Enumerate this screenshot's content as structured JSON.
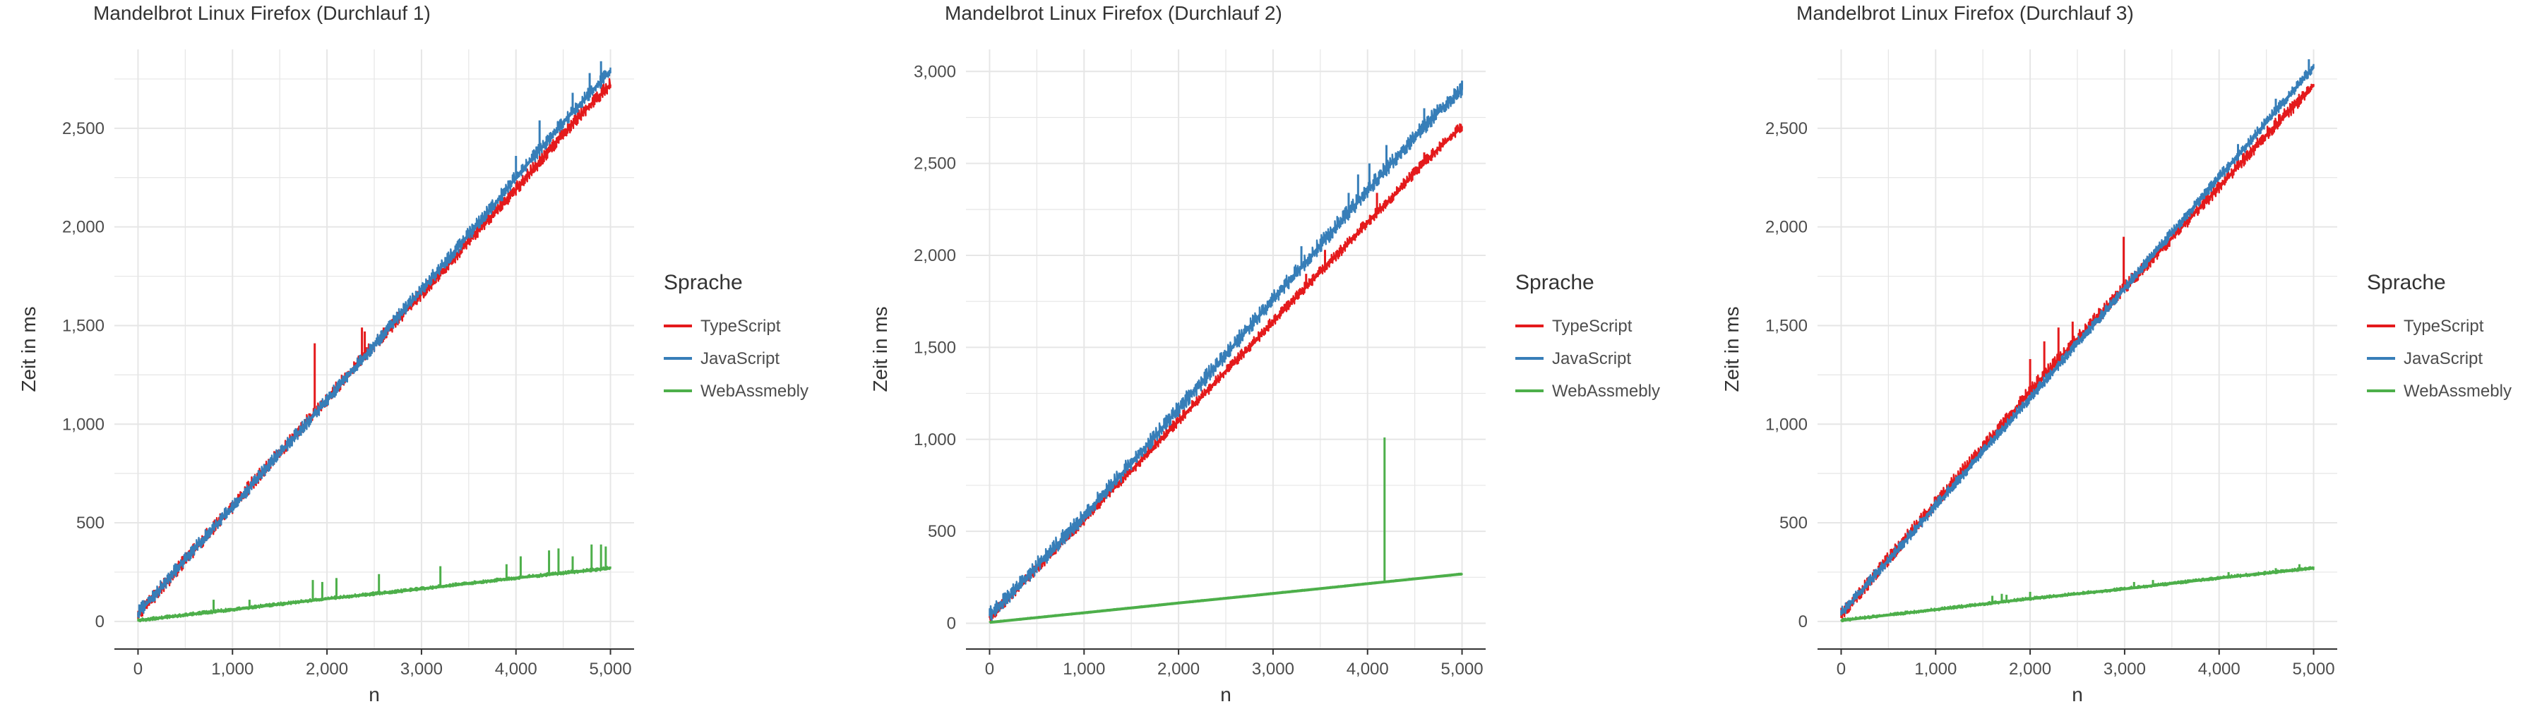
{
  "chart_data": [
    {
      "type": "line",
      "title": "Mandelbrot Linux Firefox (Durchlauf 1)",
      "xlabel": "n",
      "ylabel": "Zeit in ms",
      "xlim": [
        -250,
        5250
      ],
      "ylim": [
        -140,
        2900
      ],
      "x_ticks": [
        0,
        1000,
        2000,
        3000,
        4000,
        5000
      ],
      "x_tick_labels": [
        "0",
        "1,000",
        "2,000",
        "3,000",
        "4,000",
        "5,000"
      ],
      "y_ticks": [
        0,
        500,
        1000,
        1500,
        2000,
        2500
      ],
      "y_tick_labels": [
        "0",
        "500",
        "1,000",
        "1,500",
        "2,000",
        "2,500"
      ],
      "legend": {
        "title": "Sprache",
        "placement": "right",
        "entries": [
          "TypeScript",
          "JavaScript",
          "WebAssmebly"
        ]
      },
      "grid": true,
      "series": [
        {
          "name": "TypeScript",
          "color": "#E41A1C",
          "x": [
            0,
            250,
            500,
            750,
            1000,
            1250,
            1500,
            1750,
            2000,
            2250,
            2500,
            2750,
            3000,
            3250,
            3500,
            3750,
            4000,
            4250,
            4500,
            4750,
            5000
          ],
          "y": [
            30,
            165,
            310,
            445,
            580,
            720,
            855,
            990,
            1125,
            1265,
            1400,
            1530,
            1660,
            1790,
            1930,
            2060,
            2190,
            2330,
            2470,
            2600,
            2720
          ],
          "band": 70,
          "spikes": [
            {
              "x": 1870,
              "y": 1410
            },
            {
              "x": 2370,
              "y": 1490
            },
            {
              "x": 2400,
              "y": 1470
            },
            {
              "x": 2600,
              "y": 1490
            }
          ]
        },
        {
          "name": "JavaScript",
          "color": "#377EB8",
          "x": [
            0,
            250,
            500,
            750,
            1000,
            1250,
            1500,
            1750,
            2000,
            2250,
            2500,
            2750,
            3000,
            3250,
            3500,
            3750,
            4000,
            4250,
            4500,
            4750,
            5000
          ],
          "y": [
            40,
            175,
            315,
            450,
            580,
            715,
            850,
            985,
            1120,
            1260,
            1400,
            1540,
            1680,
            1820,
            1960,
            2100,
            2250,
            2390,
            2530,
            2660,
            2790
          ],
          "band": 70,
          "spikes": [
            {
              "x": 4000,
              "y": 2360
            },
            {
              "x": 4250,
              "y": 2540
            },
            {
              "x": 4600,
              "y": 2680
            },
            {
              "x": 4780,
              "y": 2780
            },
            {
              "x": 4900,
              "y": 2840
            }
          ]
        },
        {
          "name": "WebAssmebly",
          "color": "#4DAF4A",
          "x": [
            0,
            1000,
            2000,
            3000,
            4000,
            5000
          ],
          "y": [
            5,
            60,
            115,
            165,
            220,
            270
          ],
          "band": 18,
          "spikes": [
            {
              "x": 800,
              "y": 110
            },
            {
              "x": 1180,
              "y": 110
            },
            {
              "x": 1850,
              "y": 210
            },
            {
              "x": 1950,
              "y": 200
            },
            {
              "x": 2100,
              "y": 220
            },
            {
              "x": 2550,
              "y": 240
            },
            {
              "x": 3200,
              "y": 280
            },
            {
              "x": 3900,
              "y": 290
            },
            {
              "x": 4050,
              "y": 330
            },
            {
              "x": 4350,
              "y": 360
            },
            {
              "x": 4450,
              "y": 370
            },
            {
              "x": 4600,
              "y": 330
            },
            {
              "x": 4800,
              "y": 390
            },
            {
              "x": 4900,
              "y": 390
            },
            {
              "x": 4950,
              "y": 380
            }
          ]
        }
      ]
    },
    {
      "type": "line",
      "title": "Mandelbrot Linux Firefox (Durchlauf 2)",
      "xlabel": "n",
      "ylabel": "Zeit in ms",
      "xlim": [
        -250,
        5250
      ],
      "ylim": [
        -140,
        3120
      ],
      "x_ticks": [
        0,
        1000,
        2000,
        3000,
        4000,
        5000
      ],
      "x_tick_labels": [
        "0",
        "1,000",
        "2,000",
        "3,000",
        "4,000",
        "5,000"
      ],
      "y_ticks": [
        0,
        500,
        1000,
        1500,
        2000,
        2500,
        3000
      ],
      "y_tick_labels": [
        "0",
        "500",
        "1,000",
        "1,500",
        "2,000",
        "2,500",
        "3,000"
      ],
      "legend": {
        "title": "Sprache",
        "placement": "right",
        "entries": [
          "TypeScript",
          "JavaScript",
          "WebAssmebly"
        ]
      },
      "grid": true,
      "series": [
        {
          "name": "TypeScript",
          "color": "#E41A1C",
          "x": [
            0,
            250,
            500,
            750,
            1000,
            1250,
            1500,
            1750,
            2000,
            2250,
            2500,
            2750,
            3000,
            3250,
            3500,
            3750,
            4000,
            4250,
            4500,
            4750,
            5000
          ],
          "y": [
            30,
            160,
            295,
            430,
            560,
            700,
            830,
            965,
            1100,
            1235,
            1370,
            1500,
            1640,
            1775,
            1910,
            2040,
            2180,
            2310,
            2450,
            2580,
            2700
          ],
          "band": 60,
          "spikes": [
            {
              "x": 3350,
              "y": 1900
            },
            {
              "x": 3550,
              "y": 2030
            },
            {
              "x": 4100,
              "y": 2340
            },
            {
              "x": 4600,
              "y": 2560
            }
          ]
        },
        {
          "name": "JavaScript",
          "color": "#377EB8",
          "x": [
            0,
            250,
            500,
            750,
            1000,
            1250,
            1500,
            1750,
            2000,
            2250,
            2500,
            2750,
            3000,
            3250,
            3500,
            3750,
            4000,
            4250,
            4500,
            4750,
            5000
          ],
          "y": [
            40,
            170,
            310,
            445,
            585,
            725,
            870,
            1015,
            1165,
            1310,
            1460,
            1610,
            1760,
            1905,
            2055,
            2205,
            2350,
            2500,
            2640,
            2780,
            2900
          ],
          "band": 90,
          "spikes": [
            {
              "x": 3300,
              "y": 2050
            },
            {
              "x": 3800,
              "y": 2340
            },
            {
              "x": 3900,
              "y": 2440
            },
            {
              "x": 4020,
              "y": 2500
            },
            {
              "x": 4200,
              "y": 2600
            },
            {
              "x": 4600,
              "y": 2800
            },
            {
              "x": 5000,
              "y": 2950
            }
          ]
        },
        {
          "name": "WebAssmebly",
          "color": "#4DAF4A",
          "x": [
            0,
            1000,
            2000,
            3000,
            4000,
            5000
          ],
          "y": [
            5,
            57,
            110,
            162,
            215,
            268
          ],
          "band": 8,
          "spikes": [
            {
              "x": 4180,
              "y": 1010
            }
          ]
        }
      ]
    },
    {
      "type": "line",
      "title": "Mandelbrot Linux Firefox (Durchlauf 3)",
      "xlabel": "n",
      "ylabel": "Zeit in ms",
      "xlim": [
        -250,
        5250
      ],
      "ylim": [
        -140,
        2900
      ],
      "x_ticks": [
        0,
        1000,
        2000,
        3000,
        4000,
        5000
      ],
      "x_tick_labels": [
        "0",
        "1,000",
        "2,000",
        "3,000",
        "4,000",
        "5,000"
      ],
      "y_ticks": [
        0,
        500,
        1000,
        1500,
        2000,
        2500
      ],
      "y_tick_labels": [
        "0",
        "500",
        "1,000",
        "1,500",
        "2,000",
        "2,500"
      ],
      "legend": {
        "title": "Sprache",
        "placement": "right",
        "entries": [
          "TypeScript",
          "JavaScript",
          "WebAssmebly"
        ]
      },
      "grid": true,
      "series": [
        {
          "name": "TypeScript",
          "color": "#E41A1C",
          "x": [
            0,
            250,
            500,
            750,
            1000,
            1250,
            1500,
            1750,
            2000,
            2250,
            2500,
            2750,
            3000,
            3250,
            3500,
            3750,
            4000,
            4250,
            4500,
            4750,
            5000
          ],
          "y": [
            30,
            170,
            315,
            455,
            600,
            740,
            880,
            1020,
            1165,
            1300,
            1430,
            1560,
            1690,
            1815,
            1945,
            2075,
            2200,
            2335,
            2465,
            2590,
            2720
          ],
          "band": 70,
          "spikes": [
            {
              "x": 2000,
              "y": 1330
            },
            {
              "x": 2150,
              "y": 1420
            },
            {
              "x": 2300,
              "y": 1490
            },
            {
              "x": 2450,
              "y": 1520
            },
            {
              "x": 2990,
              "y": 1950
            }
          ]
        },
        {
          "name": "JavaScript",
          "color": "#377EB8",
          "x": [
            0,
            250,
            500,
            750,
            1000,
            1250,
            1500,
            1750,
            2000,
            2250,
            2500,
            2750,
            3000,
            3250,
            3500,
            3750,
            4000,
            4250,
            4500,
            4750,
            5000
          ],
          "y": [
            40,
            175,
            310,
            445,
            585,
            720,
            860,
            995,
            1130,
            1270,
            1410,
            1545,
            1690,
            1830,
            1970,
            2110,
            2250,
            2390,
            2530,
            2670,
            2810
          ],
          "band": 55,
          "spikes": [
            {
              "x": 4200,
              "y": 2420
            },
            {
              "x": 4600,
              "y": 2650
            },
            {
              "x": 4950,
              "y": 2850
            }
          ]
        },
        {
          "name": "WebAssmebly",
          "color": "#4DAF4A",
          "x": [
            0,
            1000,
            2000,
            3000,
            4000,
            5000
          ],
          "y": [
            5,
            60,
            115,
            165,
            220,
            270
          ],
          "band": 16,
          "spikes": [
            {
              "x": 1600,
              "y": 130
            },
            {
              "x": 1700,
              "y": 140
            },
            {
              "x": 1750,
              "y": 135
            },
            {
              "x": 2000,
              "y": 150
            },
            {
              "x": 3100,
              "y": 200
            },
            {
              "x": 3300,
              "y": 210
            },
            {
              "x": 4100,
              "y": 250
            },
            {
              "x": 4600,
              "y": 270
            },
            {
              "x": 4850,
              "y": 290
            }
          ]
        }
      ]
    }
  ]
}
